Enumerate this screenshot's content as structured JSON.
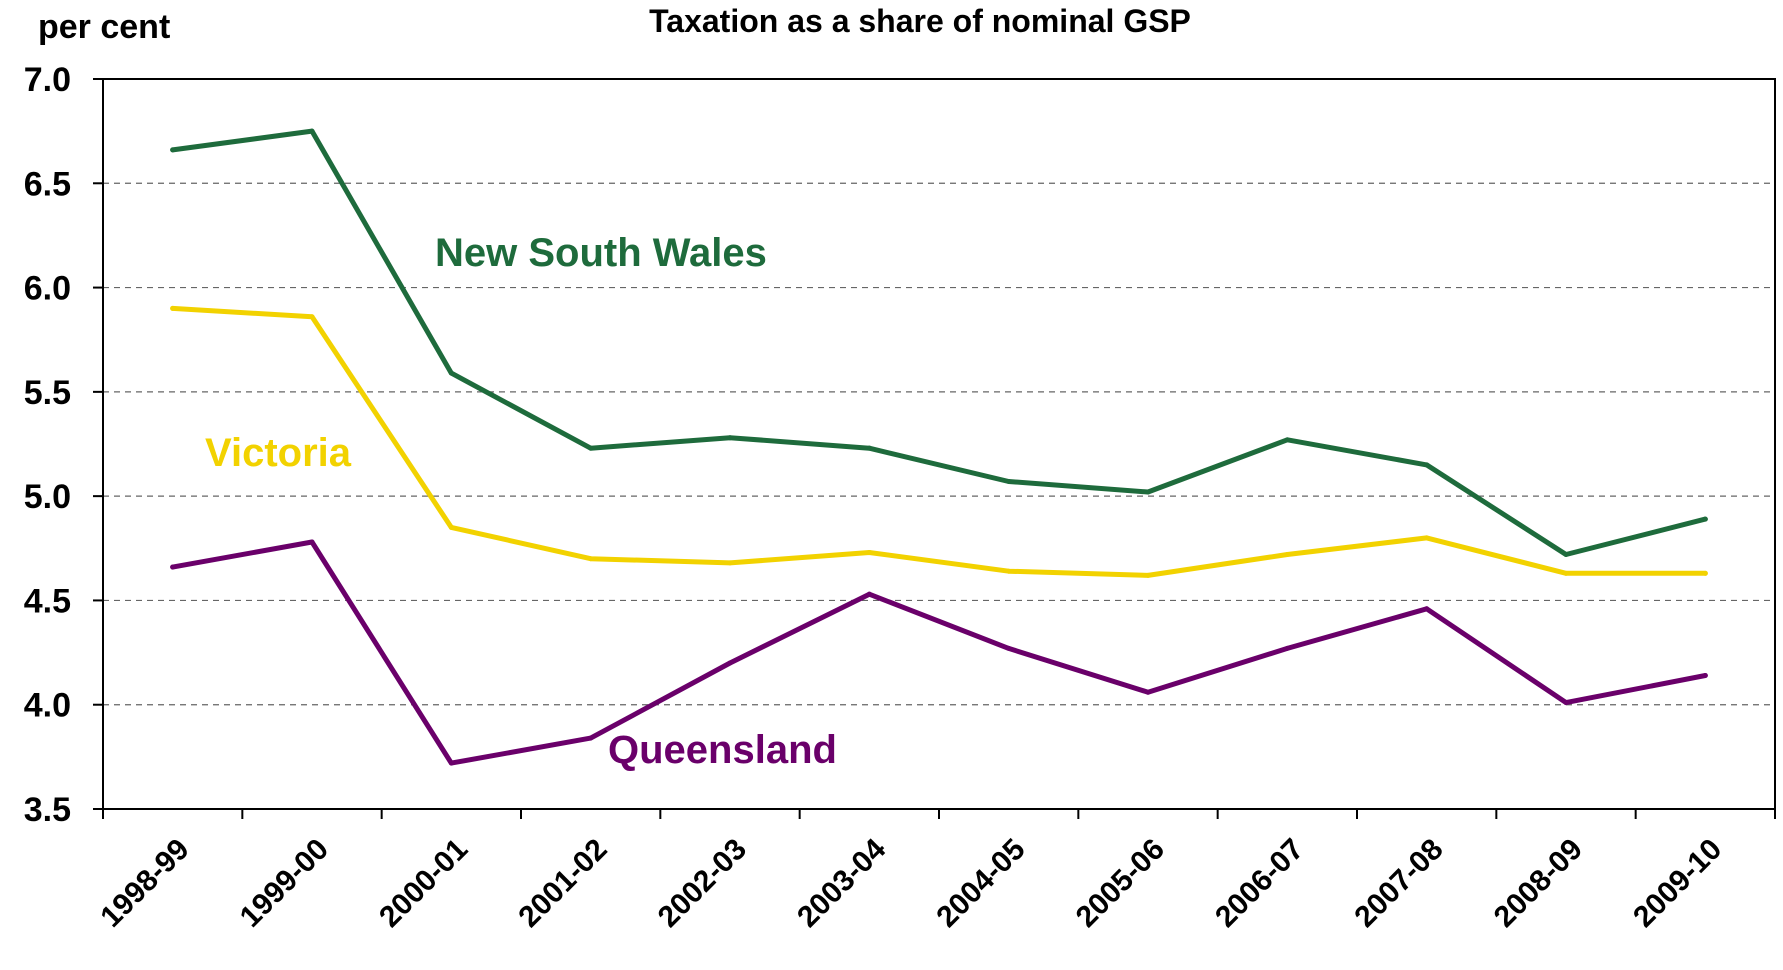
{
  "chart_data": {
    "type": "line",
    "title": "Taxation as a share of nominal GSP",
    "ylabel": "per cent",
    "xlabel": "",
    "ylim": [
      3.5,
      7.0
    ],
    "yticks": [
      "3.5",
      "4.0",
      "4.5",
      "5.0",
      "5.5",
      "6.0",
      "6.5",
      "7.0"
    ],
    "grid": true,
    "categories": [
      "1998-99",
      "1999-00",
      "2000-01",
      "2001-02",
      "2002-03",
      "2003-04",
      "2004-05",
      "2005-06",
      "2006-07",
      "2007-08",
      "2008-09",
      "2009-10"
    ],
    "series": [
      {
        "name": "New South Wales",
        "color": "#1e6b3c",
        "values": [
          6.66,
          6.75,
          5.59,
          5.23,
          5.28,
          5.23,
          5.07,
          5.02,
          5.27,
          5.15,
          4.72,
          4.89
        ]
      },
      {
        "name": "Victoria",
        "color": "#f2d200",
        "values": [
          5.9,
          5.86,
          4.85,
          4.7,
          4.68,
          4.73,
          4.64,
          4.62,
          4.72,
          4.8,
          4.63,
          4.63
        ]
      },
      {
        "name": "Queensland",
        "color": "#6a006a",
        "values": [
          4.66,
          4.78,
          3.72,
          3.84,
          4.2,
          4.53,
          4.27,
          4.06,
          4.27,
          4.46,
          4.01,
          4.14
        ]
      }
    ]
  }
}
